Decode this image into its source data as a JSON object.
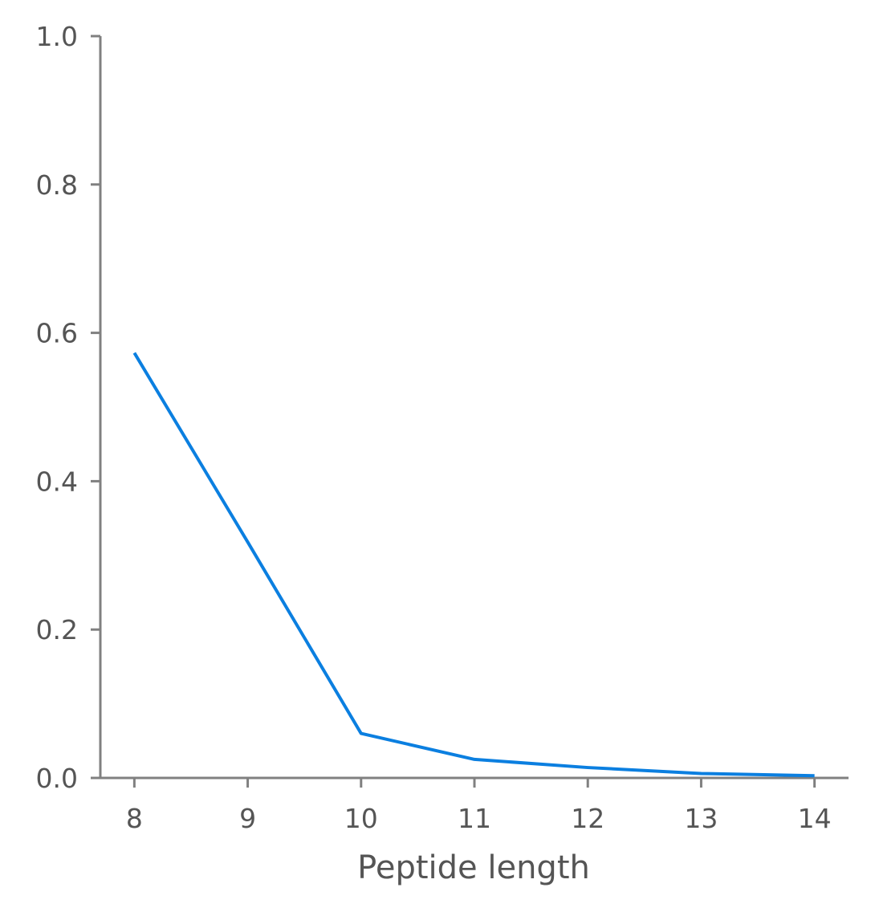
{
  "chart_data": {
    "type": "line",
    "title": "",
    "xlabel": "Peptide length",
    "ylabel": "",
    "x": [
      8,
      9,
      10,
      11,
      12,
      13,
      14
    ],
    "series": [
      {
        "values": [
          0.573,
          0.318,
          0.06,
          0.025,
          0.014,
          0.006,
          0.003
        ]
      }
    ],
    "xlim": [
      7.7,
      14.3
    ],
    "ylim": [
      0.0,
      1.0
    ],
    "xticks": [
      "8",
      "9",
      "10",
      "11",
      "12",
      "13",
      "14"
    ],
    "yticks": [
      "0.0",
      "0.2",
      "0.4",
      "0.6",
      "0.8",
      "1.0"
    ],
    "grid": false,
    "legend": "none",
    "colors": {
      "line": "#0b7fe0",
      "axis": "#808080",
      "text": "#555555"
    }
  }
}
